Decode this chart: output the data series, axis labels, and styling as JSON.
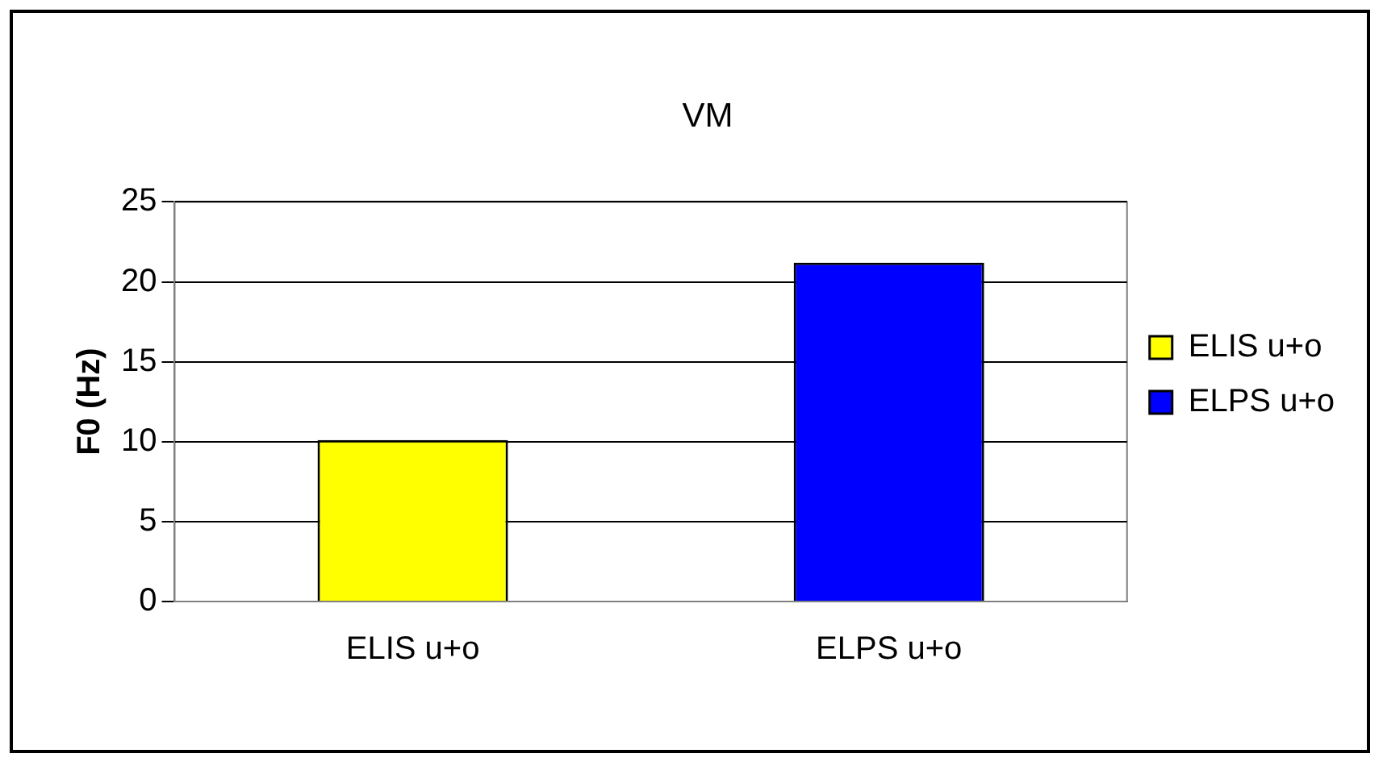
{
  "chart_data": {
    "type": "bar",
    "title": "VM",
    "ylabel": "F0 (Hz)",
    "categories": [
      "ELIS u+o",
      "ELPS u+o"
    ],
    "series": [
      {
        "name": "ELIS u+o",
        "color": "#ffff00",
        "values": [
          10.1,
          null
        ]
      },
      {
        "name": "ELPS u+o",
        "color": "#0000ff",
        "values": [
          null,
          21.2
        ]
      }
    ],
    "ylim": [
      0,
      25
    ],
    "yticks": [
      0,
      5,
      10,
      15,
      20,
      25
    ],
    "grid": "y",
    "legend": "right"
  }
}
